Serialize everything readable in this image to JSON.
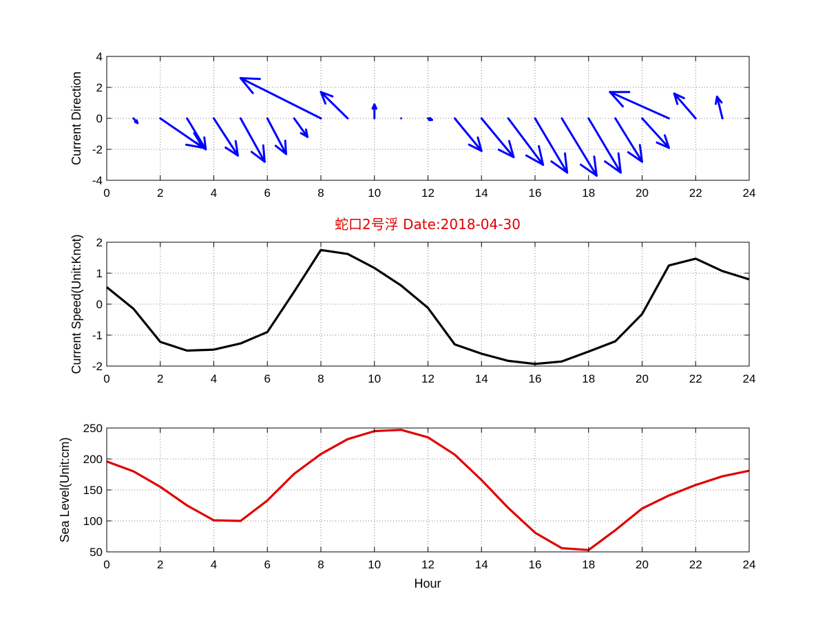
{
  "title": "蛇口2号浮   Date:2018-04-30",
  "colors": {
    "direction": "#0000ff",
    "speed": "#000000",
    "sealevel": "#e00000",
    "title": "#e00000"
  },
  "chart_data": [
    {
      "type": "quiver",
      "ylabel": "Current Direction",
      "xlabel": "",
      "xlim": [
        0,
        24
      ],
      "ylim": [
        -4,
        4
      ],
      "xticks": [
        "0",
        "2",
        "4",
        "6",
        "8",
        "10",
        "12",
        "14",
        "16",
        "18",
        "20",
        "22",
        "24"
      ],
      "yticks": [
        "-4",
        "-2",
        "0",
        "2",
        "4"
      ],
      "grid": true,
      "vectors": [
        {
          "x": 1,
          "u": 0.15,
          "v": -0.3
        },
        {
          "x": 2,
          "u": 1.6,
          "v": -1.9
        },
        {
          "x": 3,
          "u": 0.7,
          "v": -2.0
        },
        {
          "x": 4,
          "u": 0.9,
          "v": -2.4
        },
        {
          "x": 5,
          "u": 0.9,
          "v": -2.8
        },
        {
          "x": 6,
          "u": 0.7,
          "v": -2.3
        },
        {
          "x": 7,
          "u": 0.5,
          "v": -1.2
        },
        {
          "x": 8,
          "u": -3.0,
          "v": 2.6
        },
        {
          "x": 9,
          "u": -1.0,
          "v": 1.7
        },
        {
          "x": 10,
          "u": 0.0,
          "v": 0.9
        },
        {
          "x": 11,
          "u": 0.0,
          "v": 0.0
        },
        {
          "x": 12,
          "u": 0.15,
          "v": -0.1
        },
        {
          "x": 13,
          "u": 1.0,
          "v": -2.1
        },
        {
          "x": 14,
          "u": 1.2,
          "v": -2.5
        },
        {
          "x": 15,
          "u": 1.3,
          "v": -3.0
        },
        {
          "x": 16,
          "u": 1.2,
          "v": -3.5
        },
        {
          "x": 17,
          "u": 1.3,
          "v": -3.7
        },
        {
          "x": 18,
          "u": 1.2,
          "v": -3.5
        },
        {
          "x": 19,
          "u": 1.0,
          "v": -2.8
        },
        {
          "x": 20,
          "u": 1.0,
          "v": -1.9
        },
        {
          "x": 21,
          "u": -2.2,
          "v": 1.7
        },
        {
          "x": 22,
          "u": -0.8,
          "v": 1.6
        },
        {
          "x": 23,
          "u": -0.2,
          "v": 1.4
        },
        {
          "x": 24,
          "u": 0.0,
          "v": 0.0
        }
      ]
    },
    {
      "type": "line",
      "ylabel": "Current Speed(Unit:Knot)",
      "xlabel": "",
      "xlim": [
        0,
        24
      ],
      "ylim": [
        -2,
        2
      ],
      "xticks": [
        "0",
        "2",
        "4",
        "6",
        "8",
        "10",
        "12",
        "14",
        "16",
        "18",
        "20",
        "22",
        "24"
      ],
      "yticks": [
        "-2",
        "-1",
        "0",
        "1",
        "2"
      ],
      "grid": true,
      "x": [
        0,
        1,
        2,
        3,
        4,
        5,
        6,
        7,
        8,
        9,
        10,
        11,
        12,
        13,
        14,
        15,
        16,
        17,
        18,
        19,
        20,
        21,
        22,
        23,
        24
      ],
      "y": [
        0.55,
        -0.15,
        -1.22,
        -1.5,
        -1.47,
        -1.27,
        -0.9,
        0.4,
        1.75,
        1.62,
        1.17,
        0.6,
        -0.12,
        -1.3,
        -1.6,
        -1.83,
        -1.93,
        -1.85,
        -1.53,
        -1.2,
        -0.32,
        1.25,
        1.47,
        1.07,
        0.8
      ]
    },
    {
      "type": "line",
      "ylabel": "Sea Level(Unit:cm)",
      "xlabel": "Hour",
      "xlim": [
        0,
        24
      ],
      "ylim": [
        50,
        250
      ],
      "xticks": [
        "0",
        "2",
        "4",
        "6",
        "8",
        "10",
        "12",
        "14",
        "16",
        "18",
        "20",
        "22",
        "24"
      ],
      "yticks": [
        "50",
        "100",
        "150",
        "200",
        "250"
      ],
      "grid": true,
      "x": [
        0,
        1,
        2,
        3,
        4,
        5,
        6,
        7,
        8,
        9,
        10,
        11,
        12,
        13,
        14,
        15,
        16,
        17,
        18,
        19,
        20,
        21,
        22,
        23,
        24
      ],
      "y": [
        196,
        180,
        155,
        125,
        101,
        100,
        133,
        176,
        208,
        232,
        245,
        247,
        235,
        207,
        166,
        121,
        81,
        56,
        53,
        85,
        120,
        141,
        158,
        172,
        181
      ]
    }
  ]
}
